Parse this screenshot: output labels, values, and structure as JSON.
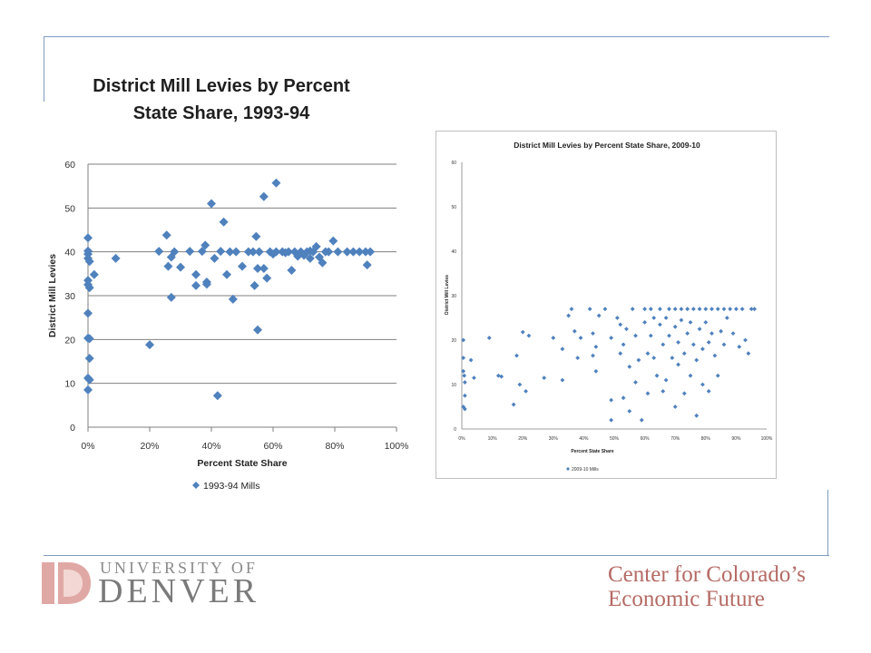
{
  "colors": {
    "frame": "#7f9cc0",
    "marker": "#4f81bd",
    "grid": "#7f7f7f",
    "du_accent": "#e0a8a4",
    "ccef_text": "#b56a64"
  },
  "main_chart": {
    "title_line1": "District Mill Levies by Percent",
    "title_line2": "State Share, 1993-94"
  },
  "inset_chart": {
    "title": "District Mill Levies by Percent State Share, 2009-10"
  },
  "logos": {
    "university_line1": "UNIVERSITY OF",
    "university_line2": "DENVER",
    "center_line1": "Center for Colorado’s",
    "center_line2": "Economic Future"
  },
  "chart_data": [
    {
      "type": "scatter",
      "title": "District Mill Levies by Percent State Share, 1993-94",
      "xlabel": "Percent State Share",
      "ylabel": "District Mill Levies",
      "xlim": [
        0,
        1
      ],
      "ylim": [
        0,
        60
      ],
      "x_ticks": [
        "0%",
        "20%",
        "40%",
        "60%",
        "80%",
        "100%"
      ],
      "y_ticks": [
        "0",
        "10",
        "20",
        "30",
        "40",
        "50",
        "60"
      ],
      "grid": "horizontal",
      "legend_position": "bottom",
      "series": [
        {
          "name": "1993-94 Mills",
          "points": [
            [
              0.0,
              43.2
            ],
            [
              0.0,
              40.2
            ],
            [
              0.0,
              39.5
            ],
            [
              0.0,
              38.5
            ],
            [
              0.005,
              37.8
            ],
            [
              0.0,
              33.5
            ],
            [
              0.0,
              32.5
            ],
            [
              0.005,
              31.8
            ],
            [
              0.0,
              26.0
            ],
            [
              0.0,
              20.3
            ],
            [
              0.005,
              20.2
            ],
            [
              0.005,
              15.7
            ],
            [
              0.0,
              11.2
            ],
            [
              0.005,
              10.8
            ],
            [
              0.0,
              8.5
            ],
            [
              0.02,
              34.8
            ],
            [
              0.09,
              38.5
            ],
            [
              0.2,
              18.8
            ],
            [
              0.23,
              40.1
            ],
            [
              0.255,
              43.8
            ],
            [
              0.26,
              36.7
            ],
            [
              0.27,
              29.6
            ],
            [
              0.27,
              38.8
            ],
            [
              0.28,
              40.0
            ],
            [
              0.3,
              36.5
            ],
            [
              0.33,
              40.1
            ],
            [
              0.35,
              34.8
            ],
            [
              0.35,
              32.3
            ],
            [
              0.37,
              40.1
            ],
            [
              0.38,
              41.5
            ],
            [
              0.385,
              33.1
            ],
            [
              0.385,
              32.6
            ],
            [
              0.4,
              51.0
            ],
            [
              0.41,
              38.5
            ],
            [
              0.42,
              7.2
            ],
            [
              0.43,
              40.1
            ],
            [
              0.44,
              46.8
            ],
            [
              0.45,
              34.8
            ],
            [
              0.46,
              40.0
            ],
            [
              0.47,
              29.2
            ],
            [
              0.48,
              40.0
            ],
            [
              0.5,
              36.7
            ],
            [
              0.52,
              40.0
            ],
            [
              0.535,
              40.0
            ],
            [
              0.54,
              32.3
            ],
            [
              0.545,
              43.5
            ],
            [
              0.55,
              22.2
            ],
            [
              0.55,
              36.2
            ],
            [
              0.555,
              40.0
            ],
            [
              0.57,
              52.6
            ],
            [
              0.57,
              36.2
            ],
            [
              0.58,
              34.0
            ],
            [
              0.59,
              40.0
            ],
            [
              0.6,
              39.5
            ],
            [
              0.61,
              55.7
            ],
            [
              0.61,
              40.0
            ],
            [
              0.63,
              40.0
            ],
            [
              0.64,
              39.8
            ],
            [
              0.65,
              40.0
            ],
            [
              0.66,
              35.8
            ],
            [
              0.67,
              40.0
            ],
            [
              0.68,
              39.0
            ],
            [
              0.69,
              40.0
            ],
            [
              0.7,
              39.2
            ],
            [
              0.71,
              40.0
            ],
            [
              0.72,
              38.5
            ],
            [
              0.72,
              40.2
            ],
            [
              0.73,
              40.0
            ],
            [
              0.74,
              41.2
            ],
            [
              0.75,
              38.8
            ],
            [
              0.76,
              37.5
            ],
            [
              0.77,
              40.0
            ],
            [
              0.78,
              40.0
            ],
            [
              0.795,
              42.5
            ],
            [
              0.81,
              40.0
            ],
            [
              0.84,
              40.0
            ],
            [
              0.86,
              40.0
            ],
            [
              0.88,
              40.0
            ],
            [
              0.9,
              40.0
            ],
            [
              0.905,
              37.0
            ],
            [
              0.915,
              40.0
            ]
          ]
        }
      ]
    },
    {
      "type": "scatter",
      "title": "District Mill Levies by Percent State Share, 2009-10",
      "xlabel": "Percent State Share",
      "ylabel": "District Mill Levies",
      "xlim": [
        0,
        1
      ],
      "ylim": [
        0,
        60
      ],
      "x_ticks": [
        "0%",
        "10%",
        "20%",
        "30%",
        "40%",
        "50%",
        "60%",
        "70%",
        "80%",
        "90%",
        "100%"
      ],
      "y_ticks": [
        "0",
        "10",
        "20",
        "30",
        "40",
        "50",
        "60"
      ],
      "grid": "none",
      "legend_position": "bottom",
      "series": [
        {
          "name": "2009-10 Mills",
          "points": [
            [
              0.005,
              20.0
            ],
            [
              0.005,
              16.0
            ],
            [
              0.005,
              13.0
            ],
            [
              0.008,
              12.0
            ],
            [
              0.01,
              10.5
            ],
            [
              0.01,
              7.5
            ],
            [
              0.005,
              5.0
            ],
            [
              0.01,
              4.5
            ],
            [
              0.03,
              15.5
            ],
            [
              0.04,
              11.5
            ],
            [
              0.09,
              20.5
            ],
            [
              0.12,
              12.0
            ],
            [
              0.13,
              11.8
            ],
            [
              0.17,
              5.5
            ],
            [
              0.18,
              16.5
            ],
            [
              0.19,
              10.0
            ],
            [
              0.2,
              21.8
            ],
            [
              0.21,
              8.5
            ],
            [
              0.22,
              21.0
            ],
            [
              0.27,
              11.5
            ],
            [
              0.3,
              20.5
            ],
            [
              0.33,
              18.0
            ],
            [
              0.33,
              11.0
            ],
            [
              0.35,
              25.5
            ],
            [
              0.36,
              27.0
            ],
            [
              0.37,
              22.0
            ],
            [
              0.38,
              16.0
            ],
            [
              0.39,
              20.5
            ],
            [
              0.42,
              27.0
            ],
            [
              0.43,
              21.5
            ],
            [
              0.43,
              16.5
            ],
            [
              0.44,
              18.5
            ],
            [
              0.44,
              13.0
            ],
            [
              0.45,
              25.5
            ],
            [
              0.47,
              27.0
            ],
            [
              0.49,
              20.5
            ],
            [
              0.49,
              6.5
            ],
            [
              0.49,
              2.0
            ],
            [
              0.51,
              25.0
            ],
            [
              0.52,
              17.0
            ],
            [
              0.52,
              23.5
            ],
            [
              0.53,
              19.0
            ],
            [
              0.53,
              7.0
            ],
            [
              0.54,
              22.5
            ],
            [
              0.55,
              14.0
            ],
            [
              0.55,
              4.0
            ],
            [
              0.56,
              27.0
            ],
            [
              0.57,
              21.0
            ],
            [
              0.57,
              10.5
            ],
            [
              0.58,
              15.5
            ],
            [
              0.59,
              2.0
            ],
            [
              0.6,
              27.0
            ],
            [
              0.6,
              24.0
            ],
            [
              0.61,
              17.0
            ],
            [
              0.61,
              8.0
            ],
            [
              0.62,
              27.0
            ],
            [
              0.62,
              21.0
            ],
            [
              0.63,
              25.0
            ],
            [
              0.63,
              16.0
            ],
            [
              0.64,
              12.0
            ],
            [
              0.65,
              27.0
            ],
            [
              0.65,
              23.5
            ],
            [
              0.66,
              19.0
            ],
            [
              0.66,
              8.5
            ],
            [
              0.67,
              25.0
            ],
            [
              0.67,
              11.0
            ],
            [
              0.68,
              27.0
            ],
            [
              0.68,
              21.0
            ],
            [
              0.69,
              16.0
            ],
            [
              0.7,
              27.0
            ],
            [
              0.7,
              23.0
            ],
            [
              0.7,
              5.0
            ],
            [
              0.71,
              19.5
            ],
            [
              0.71,
              14.5
            ],
            [
              0.72,
              27.0
            ],
            [
              0.72,
              24.5
            ],
            [
              0.73,
              17.0
            ],
            [
              0.73,
              8.0
            ],
            [
              0.74,
              27.0
            ],
            [
              0.74,
              21.5
            ],
            [
              0.75,
              24.0
            ],
            [
              0.75,
              12.0
            ],
            [
              0.76,
              27.0
            ],
            [
              0.76,
              19.0
            ],
            [
              0.77,
              15.5
            ],
            [
              0.77,
              3.0
            ],
            [
              0.78,
              27.0
            ],
            [
              0.78,
              22.5
            ],
            [
              0.79,
              18.0
            ],
            [
              0.79,
              10.0
            ],
            [
              0.8,
              27.0
            ],
            [
              0.8,
              24.0
            ],
            [
              0.81,
              19.5
            ],
            [
              0.81,
              8.5
            ],
            [
              0.82,
              27.0
            ],
            [
              0.82,
              21.5
            ],
            [
              0.83,
              16.5
            ],
            [
              0.84,
              27.0
            ],
            [
              0.84,
              12.0
            ],
            [
              0.85,
              22.0
            ],
            [
              0.86,
              27.0
            ],
            [
              0.86,
              19.0
            ],
            [
              0.87,
              25.0
            ],
            [
              0.88,
              27.0
            ],
            [
              0.89,
              21.5
            ],
            [
              0.9,
              27.0
            ],
            [
              0.91,
              18.5
            ],
            [
              0.92,
              27.0
            ],
            [
              0.93,
              20.0
            ],
            [
              0.94,
              17.0
            ],
            [
              0.95,
              27.0
            ],
            [
              0.96,
              27.0
            ]
          ]
        }
      ]
    }
  ]
}
